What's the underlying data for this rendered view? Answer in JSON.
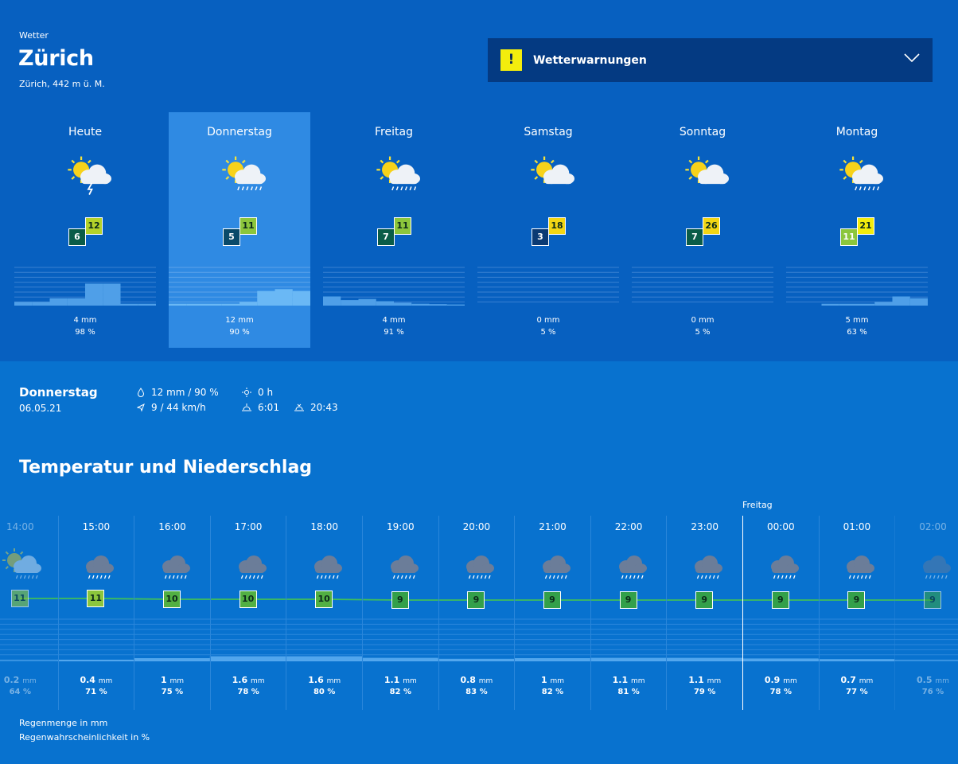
{
  "header": {
    "kicker": "Wetter",
    "city": "Zürich",
    "elevation": "Zürich, 442 m ü. M."
  },
  "warnings": {
    "badge": "!",
    "label": "Wetterwarnungen"
  },
  "days": [
    {
      "name": "Heute",
      "icon": "sun-cloud-thunder-icon",
      "tmin": "6",
      "tmax": "12",
      "tmin_color": "#0a5c48",
      "tmax_color": "#b4d22a",
      "precip": "4 mm",
      "prob": "98 %",
      "selected": false,
      "bars": [
        0.1,
        0.1,
        0.2,
        0.2,
        0.6,
        0.6,
        0.05,
        0.05
      ]
    },
    {
      "name": "Donnerstag",
      "icon": "sun-cloud-rain-icon",
      "tmin": "5",
      "tmax": "11",
      "tmin_color": "#0a4a6a",
      "tmax_color": "#8cc63c",
      "precip": "12 mm",
      "prob": "90 %",
      "selected": true,
      "bars": [
        0.05,
        0.05,
        0.05,
        0.05,
        0.1,
        0.4,
        0.45,
        0.4
      ]
    },
    {
      "name": "Freitag",
      "icon": "sun-cloud-rain-icon",
      "tmin": "7",
      "tmax": "11",
      "tmin_color": "#0a5c48",
      "tmax_color": "#8cc63c",
      "precip": "4 mm",
      "prob": "91 %",
      "selected": false,
      "bars": [
        0.25,
        0.15,
        0.18,
        0.12,
        0.08,
        0.05,
        0.04,
        0.03
      ]
    },
    {
      "name": "Samstag",
      "icon": "sun-cloud-icon",
      "tmin": "3",
      "tmax": "18",
      "tmin_color": "#0a3a74",
      "tmax_color": "#f3d614",
      "precip": "0 mm",
      "prob": "5 %",
      "selected": false,
      "bars": [
        0,
        0,
        0,
        0,
        0,
        0,
        0,
        0
      ]
    },
    {
      "name": "Sonntag",
      "icon": "sun-cloud-icon",
      "tmin": "7",
      "tmax": "26",
      "tmin_color": "#0a5c48",
      "tmax_color": "#f3d614",
      "precip": "0 mm",
      "prob": "5 %",
      "selected": false,
      "bars": [
        0,
        0,
        0,
        0,
        0,
        0,
        0,
        0
      ]
    },
    {
      "name": "Montag",
      "icon": "sun-cloud-rain-icon",
      "tmin": "11",
      "tmax": "21",
      "tmin_color": "#8cc63c",
      "tmax_color": "#f3ed0d",
      "precip": "5 mm",
      "prob": "63 %",
      "selected": false,
      "bars": [
        0,
        0,
        0.05,
        0.05,
        0.05,
        0.1,
        0.25,
        0.2
      ]
    }
  ],
  "summary": {
    "day": "Donnerstag",
    "date": "06.05.21",
    "precip": "12 mm / 90 %",
    "wind": "9 / 44 km/h",
    "sunshine": "0 h",
    "sunrise": "6:01",
    "sunset": "20:43"
  },
  "section_title": "Temperatur und Niederschlag",
  "hourly": {
    "day_marker": "Freitag",
    "hours": [
      {
        "time": "14:00",
        "icon": "sun-cloud-rain-icon",
        "temp": "11",
        "temp_color": "#8cc63c",
        "mm": "0.2",
        "unit": "mm",
        "prob": "64 %"
      },
      {
        "time": "15:00",
        "icon": "cloud-rain-icon",
        "temp": "11",
        "temp_color": "#8cc63c",
        "mm": "0.4",
        "unit": "mm",
        "prob": "71 %"
      },
      {
        "time": "16:00",
        "icon": "cloud-rain-icon",
        "temp": "10",
        "temp_color": "#52b043",
        "mm": "1",
        "unit": "mm",
        "prob": "75 %"
      },
      {
        "time": "17:00",
        "icon": "cloud-rain-icon",
        "temp": "10",
        "temp_color": "#52b043",
        "mm": "1.6",
        "unit": "mm",
        "prob": "78 %"
      },
      {
        "time": "18:00",
        "icon": "cloud-rain-icon",
        "temp": "10",
        "temp_color": "#52b043",
        "mm": "1.6",
        "unit": "mm",
        "prob": "80 %"
      },
      {
        "time": "19:00",
        "icon": "cloud-rain-icon",
        "temp": "9",
        "temp_color": "#33a04a",
        "mm": "1.1",
        "unit": "mm",
        "prob": "82 %"
      },
      {
        "time": "20:00",
        "icon": "cloud-rain-icon",
        "temp": "9",
        "temp_color": "#33a04a",
        "mm": "0.8",
        "unit": "mm",
        "prob": "83 %"
      },
      {
        "time": "21:00",
        "icon": "cloud-rain-icon",
        "temp": "9",
        "temp_color": "#33a04a",
        "mm": "1",
        "unit": "mm",
        "prob": "82 %"
      },
      {
        "time": "22:00",
        "icon": "cloud-rain-icon",
        "temp": "9",
        "temp_color": "#33a04a",
        "mm": "1.1",
        "unit": "mm",
        "prob": "81 %"
      },
      {
        "time": "23:00",
        "icon": "cloud-rain-icon",
        "temp": "9",
        "temp_color": "#33a04a",
        "mm": "1.1",
        "unit": "mm",
        "prob": "79 %"
      },
      {
        "time": "00:00",
        "icon": "cloud-rain-icon",
        "temp": "9",
        "temp_color": "#33a04a",
        "mm": "0.9",
        "unit": "mm",
        "prob": "78 %"
      },
      {
        "time": "01:00",
        "icon": "cloud-rain-icon",
        "temp": "9",
        "temp_color": "#33a04a",
        "mm": "0.7",
        "unit": "mm",
        "prob": "77 %"
      },
      {
        "time": "02:00",
        "icon": "cloud-rain-icon",
        "temp": "9",
        "temp_color": "#33a04a",
        "mm": "0.5",
        "unit": "mm",
        "prob": "76 %"
      }
    ]
  },
  "legend": {
    "line1": "Regenmenge in mm",
    "line2": "Regenwahrscheinlichkeit in %"
  }
}
